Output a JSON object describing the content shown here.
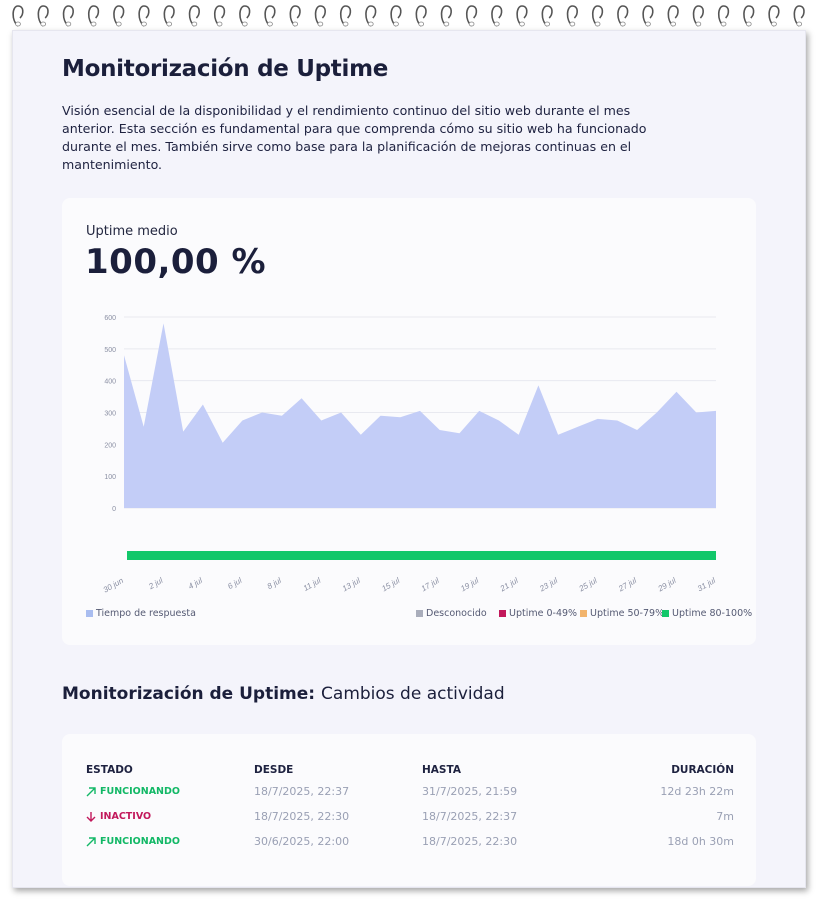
{
  "page": {
    "title": "Monitorización de Uptime",
    "intro": "Visión esencial de la disponibilidad y el rendimiento continuo del sitio web durante el mes anterior. Esta sección es fundamental para que comprenda cómo su sitio web ha funcionado durante el mes. También sirve como base para la planificación de mejoras continuas en el mantenimiento."
  },
  "stat": {
    "label": "Uptime medio",
    "value": "100,00 %"
  },
  "colors": {
    "area": "#c3cdf7",
    "uptime_bar": "#12c76a",
    "desconocido": "#a9adbb",
    "down": "#c2185b",
    "mid": "#f2b46d",
    "up": "#12c76a",
    "inactive_text": "#c2185b",
    "active_text": "#12b866"
  },
  "chart_data": {
    "type": "area",
    "y_ticks": [
      "600",
      "500",
      "400",
      "300",
      "200",
      "100",
      "0"
    ],
    "ylim": [
      0,
      600
    ],
    "x_tick_labels": [
      "30 jun",
      "2 jul",
      "4 jul",
      "6 jul",
      "8 jul",
      "11 jul",
      "13 jul",
      "15 jul",
      "17 jul",
      "19 jul",
      "21 jul",
      "23 jul",
      "25 jul",
      "27 jul",
      "29 jul",
      "31 jul"
    ],
    "series": [
      {
        "name": "Tiempo de respuesta",
        "values": [
          480,
          255,
          580,
          240,
          325,
          205,
          275,
          300,
          290,
          345,
          275,
          300,
          230,
          290,
          285,
          305,
          245,
          235,
          305,
          275,
          230,
          385,
          230,
          255,
          280,
          275,
          245,
          300,
          365,
          300,
          305
        ]
      }
    ],
    "uptime_band": {
      "category": "Uptime 80-100%",
      "value": 100
    },
    "legend": [
      {
        "label": "Tiempo de respuesta",
        "color": "#a9bdf0"
      },
      {
        "label": "Desconocido",
        "color": "#a9adbb"
      },
      {
        "label": "Uptime 0-49%",
        "color": "#c2185b"
      },
      {
        "label": "Uptime 50-79%",
        "color": "#f2b46d"
      },
      {
        "label": "Uptime 80-100%",
        "color": "#12c76a"
      }
    ]
  },
  "changes": {
    "title_bold": "Monitorización de Uptime:",
    "title_rest": "Cambios de actividad",
    "headers": {
      "estado": "ESTADO",
      "desde": "DESDE",
      "hasta": "HASTA",
      "duracion": "DURACIÓN"
    },
    "rows": [
      {
        "status": "FUNCIONANDO",
        "state": "up",
        "icon": "arrow-up-right-icon",
        "desde": "18/7/2025, 22:37",
        "hasta": "31/7/2025, 21:59",
        "duracion": "12d 23h 22m"
      },
      {
        "status": "INACTIVO",
        "state": "down",
        "icon": "arrow-down-icon",
        "desde": "18/7/2025, 22:30",
        "hasta": "18/7/2025, 22:37",
        "duracion": "7m"
      },
      {
        "status": "FUNCIONANDO",
        "state": "up",
        "icon": "arrow-up-right-icon",
        "desde": "30/6/2025, 22:00",
        "hasta": "18/7/2025, 22:30",
        "duracion": "18d 0h 30m"
      }
    ]
  }
}
